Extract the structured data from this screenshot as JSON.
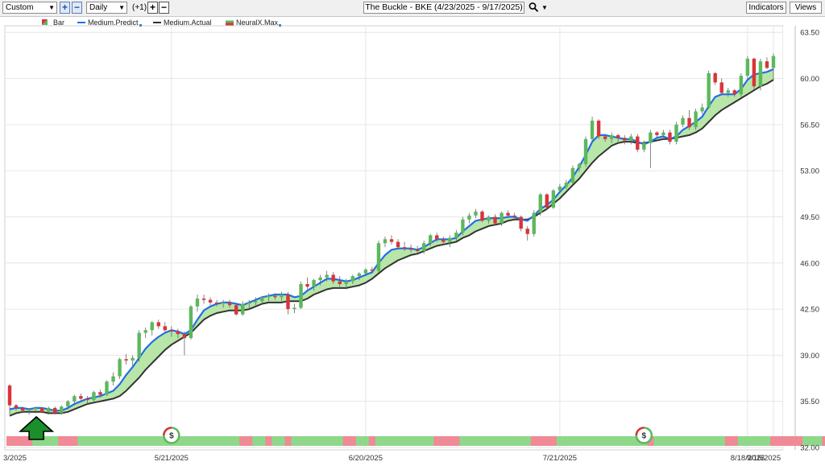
{
  "toolbar": {
    "range_select": "Custom",
    "period_select": "Daily",
    "offset_label": "(+1)",
    "chart_title": "The Buckle - BKE (4/23/2025 - 9/17/2025)",
    "indicators_button": "Indicators",
    "views_button": "Views"
  },
  "icons": {
    "zoom_in": "plus-icon",
    "zoom_out": "minus-icon",
    "add": "plus-icon",
    "remove": "minus-icon",
    "search": "magnifier-icon",
    "dropdown": "caret-down-icon",
    "signal_marker": "dollar-circle-icon",
    "buy_arrow": "up-arrow-icon"
  },
  "colors": {
    "up_candle": "#5cb85c",
    "down_candle": "#d9343a",
    "predict_line": "#1f6fe8",
    "actual_line": "#333333",
    "fill_between": "#b8e6a8",
    "strip_green": "#8fd88a",
    "strip_red": "#ef8a96",
    "buy_arrow": "#1a8f2a"
  },
  "chart_data": {
    "type": "candlestick",
    "legend": [
      "Bar",
      "Medium.Predict",
      "Medium.Actual",
      "NeuralX.Max"
    ],
    "ylim": [
      32.0,
      64.0
    ],
    "y_ticks": [
      "63.50",
      "60.00",
      "56.50",
      "53.00",
      "49.50",
      "46.00",
      "42.50",
      "39.00",
      "35.50",
      "32.00"
    ],
    "x_ticks": [
      "3/2025",
      "5/21/2025",
      "6/20/2025",
      "7/21/2025",
      "8/18/2025",
      "9/16/2025"
    ],
    "candles": [
      [
        36.7,
        36.8,
        34.5,
        35.2
      ],
      [
        35.2,
        35.3,
        34.8,
        35.0
      ],
      [
        35.0,
        35.1,
        34.6,
        34.8
      ],
      [
        34.8,
        35.0,
        34.5,
        34.9
      ],
      [
        34.9,
        35.1,
        34.6,
        35.0
      ],
      [
        35.0,
        35.0,
        34.6,
        34.7
      ],
      [
        34.7,
        35.1,
        34.5,
        35.0
      ],
      [
        35.0,
        35.1,
        34.5,
        34.6
      ],
      [
        34.6,
        35.2,
        34.5,
        35.1
      ],
      [
        35.1,
        35.6,
        34.9,
        35.5
      ],
      [
        35.5,
        36.0,
        35.2,
        35.9
      ],
      [
        35.9,
        36.1,
        35.5,
        35.7
      ],
      [
        35.7,
        35.9,
        35.3,
        35.6
      ],
      [
        35.6,
        36.3,
        35.4,
        36.2
      ],
      [
        36.2,
        36.4,
        35.8,
        36.0
      ],
      [
        36.0,
        37.1,
        35.9,
        37.0
      ],
      [
        37.0,
        37.7,
        36.7,
        37.4
      ],
      [
        37.4,
        38.8,
        37.2,
        38.7
      ],
      [
        38.7,
        39.1,
        38.3,
        38.6
      ],
      [
        38.6,
        39.0,
        38.2,
        38.8
      ],
      [
        38.8,
        40.9,
        38.5,
        40.7
      ],
      [
        40.7,
        41.1,
        40.3,
        40.9
      ],
      [
        40.9,
        41.6,
        40.5,
        41.5
      ],
      [
        41.5,
        41.7,
        41.0,
        41.2
      ],
      [
        41.2,
        41.5,
        40.7,
        40.9
      ],
      [
        40.9,
        41.2,
        40.4,
        40.8
      ],
      [
        40.8,
        41.0,
        40.3,
        40.6
      ],
      [
        40.6,
        40.8,
        39.0,
        40.3
      ],
      [
        40.3,
        42.8,
        40.2,
        42.7
      ],
      [
        42.7,
        43.6,
        42.3,
        43.3
      ],
      [
        43.3,
        43.6,
        42.9,
        43.2
      ],
      [
        43.2,
        43.4,
        42.8,
        43.0
      ],
      [
        43.0,
        43.2,
        42.7,
        42.9
      ],
      [
        42.9,
        43.2,
        42.6,
        43.0
      ],
      [
        43.0,
        43.2,
        42.6,
        42.8
      ],
      [
        42.8,
        42.9,
        42.0,
        42.1
      ],
      [
        42.1,
        43.1,
        42.0,
        42.9
      ],
      [
        42.9,
        43.2,
        42.5,
        43.0
      ],
      [
        43.0,
        43.4,
        42.8,
        43.1
      ],
      [
        43.1,
        43.5,
        42.9,
        43.4
      ],
      [
        43.4,
        43.7,
        43.1,
        43.5
      ],
      [
        43.5,
        43.7,
        43.2,
        43.4
      ],
      [
        43.4,
        43.8,
        43.1,
        43.6
      ],
      [
        43.6,
        43.8,
        42.1,
        42.5
      ],
      [
        42.5,
        42.9,
        42.2,
        42.6
      ],
      [
        42.6,
        44.6,
        42.5,
        44.4
      ],
      [
        44.4,
        44.9,
        44.0,
        44.2
      ],
      [
        44.2,
        44.8,
        43.9,
        44.7
      ],
      [
        44.7,
        45.1,
        44.3,
        44.9
      ],
      [
        44.9,
        45.4,
        44.6,
        45.1
      ],
      [
        45.1,
        45.3,
        44.4,
        44.6
      ],
      [
        44.6,
        45.0,
        44.2,
        44.4
      ],
      [
        44.4,
        44.8,
        44.0,
        44.6
      ],
      [
        44.6,
        45.1,
        44.4,
        45.0
      ],
      [
        45.0,
        45.3,
        44.7,
        45.2
      ],
      [
        45.2,
        45.6,
        45.0,
        45.5
      ],
      [
        45.5,
        45.7,
        45.2,
        45.4
      ],
      [
        45.4,
        47.7,
        45.3,
        47.5
      ],
      [
        47.5,
        48.0,
        47.2,
        47.8
      ],
      [
        47.8,
        48.1,
        47.4,
        47.6
      ],
      [
        47.6,
        47.8,
        47.0,
        47.2
      ],
      [
        47.2,
        47.6,
        46.9,
        47.1
      ],
      [
        47.1,
        47.4,
        46.8,
        47.0
      ],
      [
        47.0,
        47.3,
        46.8,
        46.9
      ],
      [
        46.9,
        47.7,
        46.7,
        47.5
      ],
      [
        47.5,
        48.2,
        47.3,
        48.1
      ],
      [
        48.1,
        48.3,
        47.6,
        47.8
      ],
      [
        47.8,
        48.0,
        47.4,
        47.6
      ],
      [
        47.6,
        48.1,
        47.2,
        47.9
      ],
      [
        47.9,
        48.5,
        47.7,
        48.3
      ],
      [
        48.3,
        49.5,
        48.1,
        49.3
      ],
      [
        49.3,
        49.8,
        49.0,
        49.6
      ],
      [
        49.6,
        50.1,
        49.4,
        49.9
      ],
      [
        49.9,
        50.0,
        49.1,
        49.2
      ],
      [
        49.2,
        49.6,
        49.0,
        49.5
      ],
      [
        49.5,
        49.7,
        48.9,
        49.0
      ],
      [
        49.0,
        49.9,
        48.8,
        49.8
      ],
      [
        49.8,
        50.0,
        49.4,
        49.6
      ],
      [
        49.6,
        49.8,
        49.2,
        49.5
      ],
      [
        49.5,
        49.6,
        48.4,
        48.6
      ],
      [
        48.6,
        48.8,
        47.7,
        48.2
      ],
      [
        48.2,
        50.0,
        48.0,
        49.8
      ],
      [
        49.8,
        51.3,
        49.6,
        51.2
      ],
      [
        51.2,
        51.3,
        50.0,
        50.2
      ],
      [
        50.2,
        51.6,
        50.1,
        51.5
      ],
      [
        51.5,
        52.0,
        51.3,
        51.8
      ],
      [
        51.8,
        52.3,
        51.6,
        52.1
      ],
      [
        52.1,
        53.4,
        52.0,
        53.2
      ],
      [
        53.2,
        53.6,
        52.9,
        53.5
      ],
      [
        53.5,
        55.6,
        53.3,
        55.4
      ],
      [
        55.4,
        57.1,
        55.2,
        56.8
      ],
      [
        56.8,
        56.9,
        55.4,
        55.6
      ],
      [
        55.6,
        55.8,
        55.2,
        55.4
      ],
      [
        55.4,
        55.9,
        55.1,
        55.7
      ],
      [
        55.7,
        55.8,
        55.2,
        55.5
      ],
      [
        55.5,
        55.7,
        55.0,
        55.3
      ],
      [
        55.3,
        55.8,
        55.0,
        55.6
      ],
      [
        55.6,
        55.8,
        54.4,
        54.6
      ],
      [
        54.6,
        55.3,
        54.4,
        55.1
      ],
      [
        55.1,
        56.1,
        53.2,
        55.9
      ],
      [
        55.9,
        56.0,
        55.5,
        55.7
      ],
      [
        55.7,
        56.1,
        55.5,
        55.9
      ],
      [
        55.9,
        56.1,
        55.0,
        55.2
      ],
      [
        55.2,
        56.7,
        55.0,
        56.5
      ],
      [
        56.5,
        57.2,
        56.3,
        57.0
      ],
      [
        57.0,
        57.6,
        56.1,
        56.3
      ],
      [
        56.3,
        57.7,
        56.1,
        57.5
      ],
      [
        57.5,
        58.1,
        57.3,
        57.8
      ],
      [
        57.8,
        60.6,
        57.7,
        60.4
      ],
      [
        60.4,
        60.5,
        59.5,
        59.7
      ],
      [
        59.7,
        60.0,
        58.8,
        58.9
      ],
      [
        58.9,
        59.3,
        58.6,
        59.1
      ],
      [
        59.1,
        59.2,
        58.6,
        58.8
      ],
      [
        58.8,
        60.4,
        58.6,
        60.2
      ],
      [
        60.2,
        61.7,
        60.0,
        61.5
      ],
      [
        61.5,
        61.6,
        59.2,
        59.4
      ],
      [
        59.4,
        61.5,
        59.1,
        61.3
      ],
      [
        61.3,
        61.6,
        60.7,
        60.8
      ],
      [
        60.8,
        61.9,
        59.9,
        61.7
      ]
    ],
    "predict_series": [
      34.9,
      35.0,
      35.0,
      34.9,
      35.0,
      35.0,
      34.9,
      34.8,
      34.8,
      35.0,
      35.3,
      35.5,
      35.7,
      35.8,
      35.9,
      36.1,
      36.3,
      36.8,
      37.5,
      38.1,
      38.8,
      39.5,
      40.0,
      40.4,
      40.7,
      40.9,
      40.8,
      40.6,
      40.9,
      41.7,
      42.4,
      42.7,
      42.9,
      43.0,
      43.0,
      42.9,
      42.8,
      43.0,
      43.2,
      43.4,
      43.5,
      43.6,
      43.6,
      43.6,
      43.4,
      43.5,
      43.9,
      44.2,
      44.5,
      44.8,
      44.8,
      44.7,
      44.6,
      44.7,
      44.9,
      45.1,
      45.3,
      46.0,
      46.6,
      47.0,
      47.1,
      47.1,
      47.1,
      47.0,
      47.2,
      47.5,
      47.8,
      47.8,
      47.8,
      47.9,
      48.4,
      48.8,
      49.2,
      49.3,
      49.4,
      49.4,
      49.4,
      49.5,
      49.5,
      49.3,
      49.2,
      49.6,
      50.1,
      50.4,
      50.8,
      51.4,
      51.9,
      52.5,
      53.3,
      54.2,
      55.2,
      55.7,
      55.7,
      55.6,
      55.5,
      55.4,
      55.4,
      55.2,
      55.0,
      55.2,
      55.5,
      55.6,
      55.4,
      55.6,
      56.1,
      56.4,
      56.7,
      57.1,
      57.9,
      58.6,
      58.8,
      58.8,
      58.8,
      59.2,
      59.9,
      60.3,
      60.4,
      60.5,
      60.7
    ],
    "actual_series": [
      34.4,
      34.6,
      34.7,
      34.7,
      34.7,
      34.7,
      34.6,
      34.6,
      34.6,
      34.7,
      34.9,
      35.1,
      35.3,
      35.4,
      35.5,
      35.6,
      35.7,
      35.9,
      36.3,
      36.8,
      37.3,
      37.9,
      38.4,
      38.9,
      39.4,
      39.8,
      40.1,
      40.4,
      40.7,
      41.2,
      41.7,
      42.0,
      42.2,
      42.3,
      42.4,
      42.4,
      42.4,
      42.5,
      42.7,
      42.9,
      43.0,
      43.0,
      43.0,
      43.1,
      43.1,
      43.1,
      43.3,
      43.6,
      43.8,
      44.0,
      44.1,
      44.1,
      44.1,
      44.2,
      44.3,
      44.5,
      44.8,
      45.2,
      45.6,
      45.9,
      46.2,
      46.4,
      46.6,
      46.7,
      46.9,
      47.1,
      47.3,
      47.4,
      47.5,
      47.6,
      47.9,
      48.1,
      48.4,
      48.6,
      48.8,
      48.9,
      49.0,
      49.2,
      49.3,
      49.3,
      49.3,
      49.5,
      49.8,
      50.1,
      50.5,
      50.9,
      51.4,
      51.9,
      52.4,
      53.0,
      53.6,
      54.1,
      54.5,
      54.9,
      55.1,
      55.2,
      55.2,
      55.1,
      55.1,
      55.2,
      55.3,
      55.4,
      55.4,
      55.5,
      55.6,
      55.7,
      55.9,
      56.2,
      56.7,
      57.2,
      57.6,
      57.9,
      58.2,
      58.5,
      58.8,
      59.1,
      59.4,
      59.6,
      59.9
    ],
    "strip_colors": "rrrrggggrrrgggggggggggggggggggggggggrrggrggrggggggggrrggrgggggggggrrrrgggggggggggrrrrggggggggggggggrgggggggggggrrgggggrrrrrgggrg",
    "signal_markers": [
      {
        "type": "dollar",
        "bar_index": 25
      },
      {
        "type": "dollar",
        "bar_index": 98
      }
    ],
    "buy_arrow_bar_index": 4
  }
}
